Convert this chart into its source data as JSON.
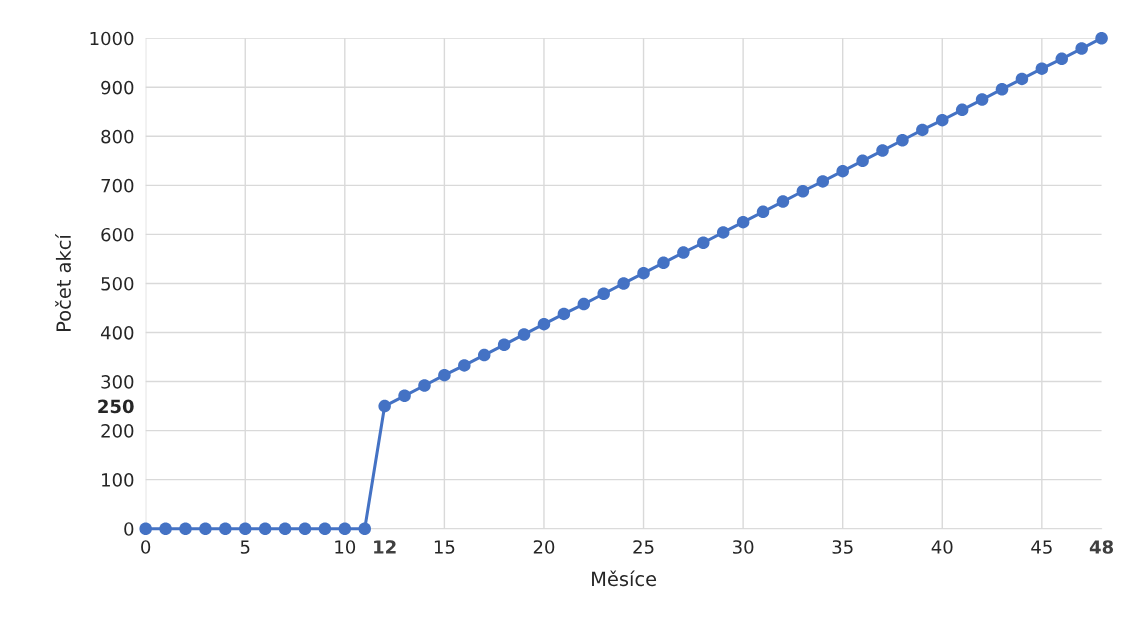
{
  "chart_data": {
    "type": "line",
    "xlabel": "Měsíce",
    "ylabel": "Počet akcí",
    "x": [
      0,
      1,
      2,
      3,
      4,
      5,
      6,
      7,
      8,
      9,
      10,
      11,
      12,
      13,
      14,
      15,
      16,
      17,
      18,
      19,
      20,
      21,
      22,
      23,
      24,
      25,
      26,
      27,
      28,
      29,
      30,
      31,
      32,
      33,
      34,
      35,
      36,
      37,
      38,
      39,
      40,
      41,
      42,
      43,
      44,
      45,
      46,
      47,
      48
    ],
    "series": [
      {
        "color": "#4472c4",
        "values": [
          0,
          0,
          0,
          0,
          0,
          0,
          0,
          0,
          0,
          0,
          0,
          0,
          250,
          271,
          292,
          313,
          333,
          354,
          375,
          396,
          417,
          438,
          458,
          479,
          500,
          521,
          542,
          563,
          583,
          604,
          625,
          646,
          667,
          688,
          708,
          729,
          750,
          771,
          792,
          813,
          833,
          854,
          875,
          896,
          917,
          938,
          958,
          979,
          1000
        ]
      }
    ],
    "xlim": [
      0,
      48
    ],
    "ylim": [
      0,
      1000
    ],
    "xticks": [
      0,
      5,
      10,
      {
        "value": 12,
        "label": "12"
      },
      15,
      20,
      25,
      30,
      35,
      40,
      45,
      {
        "value": 48,
        "label": "48"
      }
    ],
    "yticks": [
      0,
      100,
      200,
      {
        "value": 250,
        "label": "250"
      },
      300,
      400,
      500,
      600,
      700,
      800,
      900,
      1000
    ],
    "grid": true,
    "marker": "circle",
    "line_style": "solid",
    "legend": false
  }
}
